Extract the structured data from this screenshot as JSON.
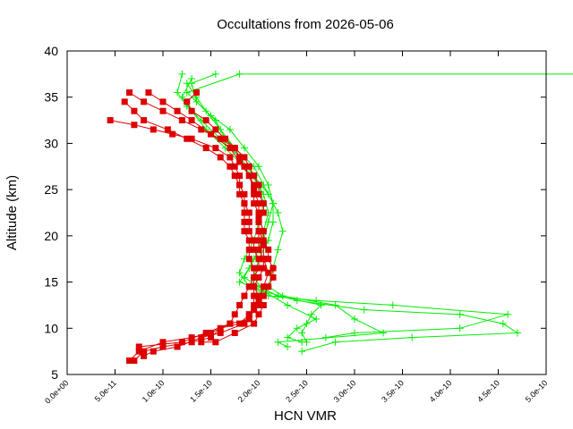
{
  "chart_data": {
    "type": "line",
    "title": "Occultations from 2026-05-06",
    "xlabel": "HCN VMR",
    "ylabel": "Altitude (km)",
    "xlim": [
      0,
      5e-10
    ],
    "ylim": [
      5,
      40
    ],
    "xticks": [
      {
        "value": 0,
        "label": "0.0e+00"
      },
      {
        "value": 5e-11,
        "label": "5.0e-11"
      },
      {
        "value": 1e-10,
        "label": "1.0e-10"
      },
      {
        "value": 1.5e-10,
        "label": "1.5e-10"
      },
      {
        "value": 2e-10,
        "label": "2.0e-10"
      },
      {
        "value": 2.5e-10,
        "label": "2.5e-10"
      },
      {
        "value": 3e-10,
        "label": "3.0e-10"
      },
      {
        "value": 3.5e-10,
        "label": "3.5e-10"
      },
      {
        "value": 4e-10,
        "label": "4.0e-10"
      },
      {
        "value": 4.5e-10,
        "label": "4.5e-10"
      },
      {
        "value": 5e-10,
        "label": "5.0e-10"
      }
    ],
    "yticks": [
      {
        "value": 5,
        "label": "5"
      },
      {
        "value": 10,
        "label": "10"
      },
      {
        "value": 15,
        "label": "15"
      },
      {
        "value": 20,
        "label": "20"
      },
      {
        "value": 25,
        "label": "25"
      },
      {
        "value": 30,
        "label": "30"
      },
      {
        "value": 35,
        "label": "35"
      },
      {
        "value": 40,
        "label": "40"
      }
    ],
    "grid": false,
    "legend": "none",
    "series": [
      {
        "marker": "plus",
        "color": "#00ee00",
        "points": [
          [
            7.6e-10,
            37.5
          ],
          [
            1.8e-10,
            37.5
          ],
          [
            1.25e-10,
            35.5
          ],
          [
            1.55e-10,
            32.5
          ],
          [
            1.65e-10,
            30.5
          ],
          [
            1.8e-10,
            28.5
          ],
          [
            1.95e-10,
            26.5
          ],
          [
            2.1e-10,
            24.5
          ],
          [
            2.2e-10,
            22.5
          ],
          [
            2.25e-10,
            20.5
          ],
          [
            2.2e-10,
            18.5
          ],
          [
            2.15e-10,
            16.5
          ],
          [
            2.1e-10,
            14.5
          ],
          [
            2.25e-10,
            13.5
          ],
          [
            2.8e-10,
            12.5
          ],
          [
            3e-10,
            11.0
          ],
          [
            3.3e-10,
            9.5
          ],
          [
            2.2e-10,
            8.5
          ],
          [
            2.3e-10,
            8.0
          ]
        ]
      },
      {
        "marker": "plus",
        "color": "#00ee00",
        "points": [
          [
            1.55e-10,
            37.5
          ],
          [
            1.3e-10,
            36.5
          ],
          [
            1.35e-10,
            34.5
          ],
          [
            1.5e-10,
            33.0
          ],
          [
            1.7e-10,
            31.5
          ],
          [
            1.85e-10,
            29.5
          ],
          [
            2e-10,
            27.5
          ],
          [
            2.1e-10,
            25.5
          ],
          [
            2.15e-10,
            23.5
          ],
          [
            2.1e-10,
            21.5
          ],
          [
            2.05e-10,
            19.5
          ],
          [
            1.95e-10,
            17.5
          ],
          [
            1.85e-10,
            15.5
          ],
          [
            2e-10,
            14.5
          ],
          [
            2.2e-10,
            13.5
          ],
          [
            2.65e-10,
            12.5
          ],
          [
            2.55e-10,
            11.5
          ],
          [
            2.5e-10,
            10.5
          ],
          [
            2.45e-10,
            9.5
          ],
          [
            2.5e-10,
            8.5
          ]
        ]
      },
      {
        "marker": "plus",
        "color": "#00ee00",
        "points": [
          [
            1.2e-10,
            37.5
          ],
          [
            1.15e-10,
            35.5
          ],
          [
            1.25e-10,
            34.0
          ],
          [
            1.4e-10,
            32.5
          ],
          [
            1.6e-10,
            30.5
          ],
          [
            1.8e-10,
            28.5
          ],
          [
            1.95e-10,
            26.5
          ],
          [
            2.05e-10,
            24.5
          ],
          [
            2.1e-10,
            22.5
          ],
          [
            2.05e-10,
            20.5
          ],
          [
            2e-10,
            18.5
          ],
          [
            1.9e-10,
            16.5
          ],
          [
            1.8e-10,
            15.0
          ],
          [
            2.05e-10,
            14.0
          ],
          [
            2.4e-10,
            13.0
          ],
          [
            3.1e-10,
            12.0
          ],
          [
            4.1e-10,
            11.5
          ],
          [
            4.55e-10,
            10.5
          ],
          [
            4.7e-10,
            9.5
          ],
          [
            3.6e-10,
            9.0
          ],
          [
            2.8e-10,
            8.5
          ],
          [
            2.45e-10,
            7.5
          ]
        ]
      },
      {
        "marker": "plus",
        "color": "#00ee00",
        "points": [
          [
            1.3e-10,
            37.0
          ],
          [
            1.2e-10,
            35.0
          ],
          [
            1.3e-10,
            33.5
          ],
          [
            1.45e-10,
            31.5
          ],
          [
            1.65e-10,
            29.5
          ],
          [
            1.85e-10,
            27.5
          ],
          [
            2e-10,
            25.5
          ],
          [
            2.05e-10,
            23.5
          ],
          [
            2e-10,
            21.5
          ],
          [
            1.95e-10,
            19.5
          ],
          [
            1.85e-10,
            17.5
          ],
          [
            1.8e-10,
            16.0
          ],
          [
            1.9e-10,
            14.5
          ],
          [
            2.1e-10,
            13.5
          ],
          [
            2.6e-10,
            13.0
          ],
          [
            3.4e-10,
            12.5
          ],
          [
            4.6e-10,
            11.5
          ],
          [
            4.1e-10,
            10.0
          ],
          [
            3e-10,
            9.5
          ],
          [
            2.7e-10,
            9.0
          ]
        ]
      },
      {
        "marker": "plus",
        "color": "#00ee00",
        "points": [
          [
            1.25e-10,
            36.5
          ],
          [
            1.35e-10,
            35.0
          ],
          [
            1.45e-10,
            33.5
          ],
          [
            1.6e-10,
            31.5
          ],
          [
            1.75e-10,
            29.5
          ],
          [
            1.95e-10,
            27.5
          ],
          [
            2.05e-10,
            25.5
          ],
          [
            2.15e-10,
            23.5
          ],
          [
            2.15e-10,
            21.5
          ],
          [
            2.1e-10,
            19.5
          ],
          [
            2e-10,
            17.5
          ],
          [
            1.95e-10,
            15.5
          ],
          [
            2.05e-10,
            14.0
          ],
          [
            2.3e-10,
            12.5
          ],
          [
            2.6e-10,
            11.0
          ],
          [
            2.4e-10,
            10.0
          ],
          [
            2.3e-10,
            9.0
          ],
          [
            2.45e-10,
            8.5
          ]
        ]
      },
      {
        "marker": "square",
        "color": "#dd0000",
        "points": [
          [
            6.5e-11,
            35.5
          ],
          [
            8e-11,
            34.5
          ],
          [
            1e-10,
            33.5
          ],
          [
            1.2e-10,
            32.5
          ],
          [
            1.4e-10,
            31.5
          ],
          [
            1.6e-10,
            30.5
          ],
          [
            1.75e-10,
            29.5
          ],
          [
            1.8e-10,
            28.5
          ],
          [
            1.85e-10,
            27.5
          ],
          [
            1.9e-10,
            26.5
          ],
          [
            1.95e-10,
            25.5
          ],
          [
            1.95e-10,
            24.5
          ],
          [
            1.95e-10,
            23.5
          ],
          [
            2e-10,
            22.5
          ],
          [
            2e-10,
            21.5
          ],
          [
            2e-10,
            20.5
          ],
          [
            2.05e-10,
            19.5
          ],
          [
            2.1e-10,
            18.5
          ],
          [
            2.1e-10,
            17.5
          ],
          [
            2.15e-10,
            16.5
          ],
          [
            2.15e-10,
            15.5
          ],
          [
            2.1e-10,
            14.5
          ],
          [
            2.05e-10,
            13.5
          ],
          [
            2e-10,
            12.5
          ],
          [
            1.9e-10,
            11.5
          ],
          [
            1.8e-10,
            10.5
          ],
          [
            1.6e-10,
            10.0
          ],
          [
            1.5e-10,
            9.0
          ],
          [
            1.3e-10,
            8.5
          ],
          [
            1e-10,
            8.0
          ],
          [
            8e-11,
            7.5
          ],
          [
            7e-11,
            6.5
          ]
        ]
      },
      {
        "marker": "square",
        "color": "#dd0000",
        "points": [
          [
            4.5e-11,
            32.5
          ],
          [
            7e-11,
            32.0
          ],
          [
            9e-11,
            31.5
          ],
          [
            1.1e-10,
            31.0
          ],
          [
            1.3e-10,
            30.5
          ],
          [
            1.55e-10,
            29.5
          ],
          [
            1.7e-10,
            28.5
          ],
          [
            1.75e-10,
            27.5
          ],
          [
            1.8e-10,
            26.5
          ],
          [
            1.8e-10,
            25.5
          ],
          [
            1.85e-10,
            24.5
          ],
          [
            1.85e-10,
            23.5
          ],
          [
            1.9e-10,
            22.5
          ],
          [
            1.9e-10,
            21.5
          ],
          [
            1.9e-10,
            20.5
          ],
          [
            1.95e-10,
            19.5
          ],
          [
            1.95e-10,
            18.5
          ],
          [
            2e-10,
            17.5
          ],
          [
            2e-10,
            16.5
          ],
          [
            1.95e-10,
            15.5
          ],
          [
            1.9e-10,
            14.5
          ],
          [
            1.85e-10,
            13.5
          ],
          [
            1.8e-10,
            12.5
          ],
          [
            1.75e-10,
            11.5
          ],
          [
            1.7e-10,
            10.5
          ],
          [
            1.5e-10,
            9.5
          ],
          [
            1.3e-10,
            9.0
          ],
          [
            1e-10,
            8.5
          ],
          [
            7.5e-11,
            7.5
          ],
          [
            6.5e-11,
            6.5
          ]
        ]
      },
      {
        "marker": "square",
        "color": "#dd0000",
        "points": [
          [
            6e-11,
            34.5
          ],
          [
            7e-11,
            33.5
          ],
          [
            8e-11,
            32.5
          ],
          [
            1.05e-10,
            31.5
          ],
          [
            1.25e-10,
            30.5
          ],
          [
            1.45e-10,
            29.5
          ],
          [
            1.6e-10,
            28.5
          ],
          [
            1.7e-10,
            27.5
          ],
          [
            1.75e-10,
            26.5
          ],
          [
            1.8e-10,
            25.5
          ],
          [
            1.8e-10,
            24.5
          ],
          [
            1.85e-10,
            23.5
          ],
          [
            1.85e-10,
            22.5
          ],
          [
            1.85e-10,
            21.5
          ],
          [
            1.85e-10,
            20.5
          ],
          [
            1.9e-10,
            19.5
          ],
          [
            1.9e-10,
            18.5
          ],
          [
            1.9e-10,
            17.5
          ],
          [
            1.95e-10,
            16.5
          ],
          [
            1.95e-10,
            15.5
          ],
          [
            1.95e-10,
            14.5
          ],
          [
            1.95e-10,
            13.5
          ],
          [
            1.95e-10,
            12.5
          ],
          [
            1.9e-10,
            11.5
          ],
          [
            1.85e-10,
            10.5
          ],
          [
            1.6e-10,
            9.5
          ],
          [
            1.4e-10,
            9.0
          ],
          [
            1.15e-10,
            8.0
          ],
          [
            9e-11,
            7.5
          ],
          [
            8e-11,
            7.0
          ]
        ]
      },
      {
        "marker": "square",
        "color": "#dd0000",
        "points": [
          [
            8.5e-11,
            35.5
          ],
          [
            1e-10,
            34.5
          ],
          [
            1.15e-10,
            33.5
          ],
          [
            1.3e-10,
            32.5
          ],
          [
            1.5e-10,
            31.0
          ],
          [
            1.7e-10,
            29.5
          ],
          [
            1.8e-10,
            28.0
          ],
          [
            1.9e-10,
            26.5
          ],
          [
            1.95e-10,
            25.0
          ],
          [
            2e-10,
            23.5
          ],
          [
            2e-10,
            22.0
          ],
          [
            2.05e-10,
            20.5
          ],
          [
            2.05e-10,
            19.0
          ],
          [
            2.05e-10,
            17.5
          ],
          [
            2.1e-10,
            16.0
          ],
          [
            2.05e-10,
            14.5
          ],
          [
            2e-10,
            13.0
          ],
          [
            1.95e-10,
            12.0
          ],
          [
            1.9e-10,
            11.0
          ],
          [
            1.7e-10,
            10.5
          ],
          [
            1.45e-10,
            9.5
          ],
          [
            1.2e-10,
            8.5
          ],
          [
            7.5e-11,
            8.0
          ]
        ]
      },
      {
        "marker": "square",
        "color": "#dd0000",
        "points": [
          [
            1.35e-10,
            35.5
          ],
          [
            1.25e-10,
            34.5
          ],
          [
            1.3e-10,
            33.5
          ],
          [
            1.45e-10,
            32.5
          ],
          [
            1.55e-10,
            31.5
          ],
          [
            1.65e-10,
            30.5
          ],
          [
            1.75e-10,
            29.5
          ],
          [
            1.85e-10,
            28.5
          ],
          [
            1.9e-10,
            27.5
          ],
          [
            1.95e-10,
            26.5
          ],
          [
            2e-10,
            25.5
          ],
          [
            2e-10,
            24.5
          ],
          [
            2.05e-10,
            23.5
          ],
          [
            2.05e-10,
            22.5
          ],
          [
            2e-10,
            21.5
          ],
          [
            2e-10,
            20.5
          ],
          [
            2e-10,
            19.5
          ],
          [
            2e-10,
            18.5
          ],
          [
            2.05e-10,
            17.5
          ],
          [
            2.05e-10,
            16.5
          ],
          [
            2e-10,
            15.5
          ],
          [
            1.95e-10,
            14.5
          ],
          [
            2e-10,
            13.5
          ],
          [
            2.05e-10,
            12.5
          ],
          [
            2e-10,
            11.5
          ],
          [
            1.95e-10,
            10.5
          ],
          [
            1.75e-10,
            9.5
          ],
          [
            1.55e-10,
            8.5
          ],
          [
            1.4e-10,
            8.5
          ]
        ]
      }
    ]
  }
}
